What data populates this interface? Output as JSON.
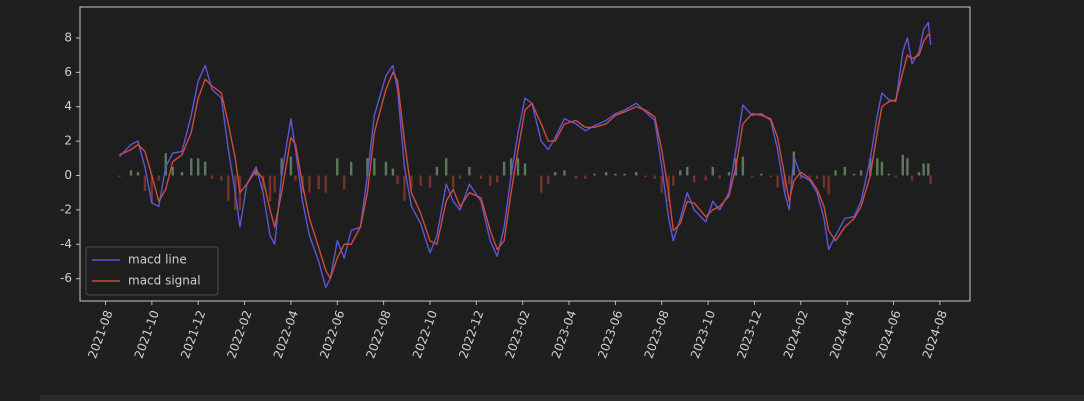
{
  "chart_data": {
    "type": "line",
    "x": [
      0.6,
      1.1,
      1.4,
      1.7,
      2.0,
      2.3,
      2.6,
      2.9,
      3.3,
      3.7,
      4.0,
      4.3,
      4.6,
      5.0,
      5.3,
      5.6,
      5.8,
      6.1,
      6.5,
      6.8,
      7.1,
      7.3,
      7.6,
      8.0,
      8.2,
      8.5,
      8.8,
      9.2,
      9.5,
      9.7,
      10.0,
      10.3,
      10.6,
      11.0,
      11.3,
      11.6,
      12.1,
      12.4,
      12.6,
      12.9,
      13.2,
      13.6,
      14.0,
      14.3,
      14.7,
      15.0,
      15.3,
      15.7,
      16.2,
      16.6,
      16.9,
      17.2,
      17.5,
      17.8,
      18.1,
      18.4,
      18.8,
      19.1,
      19.4,
      19.8,
      20.3,
      20.7,
      21.1,
      21.6,
      22.0,
      22.4,
      22.9,
      23.3,
      23.7,
      24.0,
      24.3,
      24.5,
      24.8,
      25.1,
      25.4,
      25.9,
      26.2,
      26.5,
      26.9,
      27.2,
      27.5,
      27.9,
      28.3,
      28.7,
      29.0,
      29.3,
      29.5,
      29.7,
      30.0,
      30.4,
      30.7,
      31.0,
      31.2,
      31.5,
      31.9,
      32.3,
      32.6,
      33.0,
      33.3,
      33.5,
      33.8,
      34.1,
      34.4,
      34.6,
      34.8,
      35.1,
      35.3,
      35.5,
      35.6
    ],
    "series": [
      {
        "name": "macd line",
        "color": "#5858d8",
        "values": [
          1.1,
          1.8,
          2.0,
          0.5,
          -1.6,
          -1.8,
          0.5,
          1.3,
          1.4,
          3.5,
          5.5,
          6.4,
          5.0,
          4.5,
          1.5,
          -1.0,
          -3.0,
          -0.5,
          0.5,
          -1.0,
          -3.5,
          -4.0,
          0.0,
          3.3,
          1.5,
          -1.5,
          -3.5,
          -5.0,
          -6.5,
          -6.0,
          -3.8,
          -4.8,
          -3.2,
          -3.0,
          0.0,
          3.5,
          5.8,
          6.4,
          5.0,
          0.5,
          -1.8,
          -2.8,
          -4.5,
          -3.5,
          -0.5,
          -1.5,
          -2.0,
          -0.5,
          -1.5,
          -3.8,
          -4.7,
          -3.0,
          0.0,
          2.5,
          4.5,
          4.2,
          2.0,
          1.5,
          2.2,
          3.3,
          3.0,
          2.6,
          2.9,
          3.2,
          3.6,
          3.8,
          4.2,
          3.7,
          3.2,
          0.5,
          -2.5,
          -3.8,
          -2.5,
          -1.0,
          -2.0,
          -2.7,
          -1.5,
          -2.0,
          -1.0,
          1.5,
          4.1,
          3.5,
          3.6,
          3.2,
          1.5,
          -1.0,
          -2.0,
          1.1,
          0.0,
          -0.3,
          -1.0,
          -2.5,
          -4.3,
          -3.5,
          -2.5,
          -2.4,
          -1.5,
          1.0,
          3.5,
          4.8,
          4.4,
          4.3,
          7.2,
          8.0,
          6.5,
          7.2,
          8.5,
          8.9,
          7.6
        ]
      },
      {
        "name": "macd signal",
        "color": "#d24a3c",
        "values": [
          1.2,
          1.5,
          1.8,
          1.4,
          0.0,
          -1.5,
          -0.8,
          0.8,
          1.2,
          2.5,
          4.5,
          5.6,
          5.2,
          4.8,
          3.0,
          1.0,
          -1.0,
          -0.5,
          0.3,
          -0.2,
          -2.0,
          -3.0,
          -1.0,
          2.2,
          1.8,
          -0.5,
          -2.5,
          -4.2,
          -5.5,
          -6.0,
          -4.8,
          -4.0,
          -4.0,
          -3.0,
          -1.0,
          2.5,
          5.0,
          6.0,
          5.5,
          2.0,
          -1.0,
          -2.2,
          -3.8,
          -4.0,
          -1.5,
          -0.8,
          -1.8,
          -1.0,
          -1.3,
          -3.2,
          -4.3,
          -3.8,
          -1.0,
          1.5,
          3.8,
          4.2,
          3.0,
          2.0,
          2.0,
          3.0,
          3.2,
          2.8,
          2.8,
          3.0,
          3.5,
          3.7,
          4.0,
          3.8,
          3.4,
          1.5,
          -1.0,
          -3.2,
          -2.8,
          -1.5,
          -1.6,
          -2.4,
          -2.0,
          -1.8,
          -1.2,
          0.5,
          3.0,
          3.6,
          3.5,
          3.3,
          2.2,
          0.0,
          -1.5,
          -0.3,
          0.2,
          -0.2,
          -0.8,
          -1.8,
          -3.2,
          -3.8,
          -3.0,
          -2.5,
          -1.8,
          0.0,
          2.5,
          4.0,
          4.3,
          4.4,
          6.0,
          7.0,
          6.8,
          7.0,
          7.8,
          8.2,
          8.1
        ]
      }
    ],
    "histogram_colors": {
      "positive": "#6f9a6f",
      "negative": "#8e3b32"
    },
    "xlim": [
      -1.1,
      37.3
    ],
    "xticks": [
      {
        "value": 0,
        "label": "2021-08"
      },
      {
        "value": 2,
        "label": "2021-10"
      },
      {
        "value": 4,
        "label": "2021-12"
      },
      {
        "value": 6,
        "label": "2022-02"
      },
      {
        "value": 8,
        "label": "2022-04"
      },
      {
        "value": 10,
        "label": "2022-06"
      },
      {
        "value": 12,
        "label": "2022-08"
      },
      {
        "value": 14,
        "label": "2022-10"
      },
      {
        "value": 16,
        "label": "2022-12"
      },
      {
        "value": 18,
        "label": "2023-02"
      },
      {
        "value": 20,
        "label": "2023-04"
      },
      {
        "value": 22,
        "label": "2023-06"
      },
      {
        "value": 24,
        "label": "2023-08"
      },
      {
        "value": 26,
        "label": "2023-10"
      },
      {
        "value": 28,
        "label": "2023-12"
      },
      {
        "value": 30,
        "label": "2024-02"
      },
      {
        "value": 32,
        "label": "2024-04"
      },
      {
        "value": 34,
        "label": "2024-06"
      },
      {
        "value": 36,
        "label": "2024-08"
      }
    ],
    "ylim": [
      -7.3,
      9.8
    ],
    "yticks": [
      -6,
      -4,
      -2,
      0,
      2,
      4,
      6,
      8
    ],
    "legend": "lower left"
  }
}
